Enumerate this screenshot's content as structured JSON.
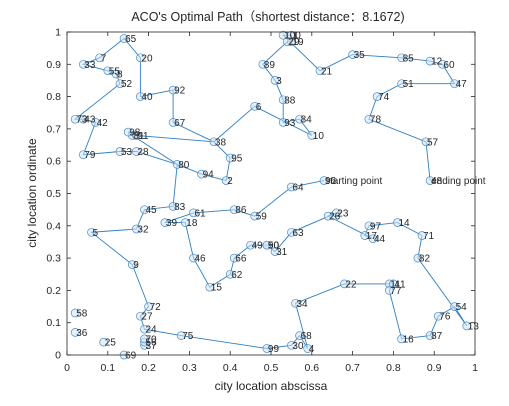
{
  "chart_data": {
    "type": "scatter",
    "title": "ACO's Optimal Path（shortest distance：8.1672)",
    "xlabel": "city location abscissa",
    "ylabel": "city location ordinate",
    "xlim": [
      0,
      1
    ],
    "ylim": [
      0,
      1
    ],
    "xticks": [
      "0",
      "0.1",
      "0.2",
      "0.3",
      "0.4",
      "0.5",
      "0.6",
      "0.7",
      "0.8",
      "0.9",
      "1"
    ],
    "yticks": [
      "0",
      "0.1",
      "0.2",
      "0.3",
      "0.4",
      "0.5",
      "0.6",
      "0.7",
      "0.8",
      "0.9",
      "1"
    ],
    "grid": false,
    "legend": "none",
    "colors": {
      "route": "#2f7fc2",
      "marker_edge": "#4f8fc4",
      "marker_fill": "#cfe3f5"
    },
    "annotations": [
      "starting point",
      "ending point"
    ],
    "points": [
      {
        "label": "1",
        "x": 0.55,
        "y": 0.99
      },
      {
        "label": "2",
        "x": 0.39,
        "y": 0.54
      },
      {
        "label": "3",
        "x": 0.51,
        "y": 0.85
      },
      {
        "label": "4",
        "x": 0.59,
        "y": 0.02
      },
      {
        "label": "5",
        "x": 0.06,
        "y": 0.38
      },
      {
        "label": "6",
        "x": 0.46,
        "y": 0.77
      },
      {
        "label": "7",
        "x": 0.08,
        "y": 0.92
      },
      {
        "label": "8",
        "x": 0.12,
        "y": 0.87
      },
      {
        "label": "9",
        "x": 0.16,
        "y": 0.28
      },
      {
        "label": "10",
        "x": 0.6,
        "y": 0.68
      },
      {
        "label": "11",
        "x": 0.79,
        "y": 0.22
      },
      {
        "label": "12",
        "x": 0.89,
        "y": 0.91
      },
      {
        "label": "13",
        "x": 0.98,
        "y": 0.09
      },
      {
        "label": "14",
        "x": 0.81,
        "y": 0.41
      },
      {
        "label": "15",
        "x": 0.35,
        "y": 0.21
      },
      {
        "label": "16",
        "x": 0.82,
        "y": 0.05
      },
      {
        "label": "17",
        "x": 0.73,
        "y": 0.37
      },
      {
        "label": "18",
        "x": 0.29,
        "y": 0.41
      },
      {
        "label": "19",
        "x": 0.55,
        "y": 0.97
      },
      {
        "label": "20",
        "x": 0.18,
        "y": 0.92
      },
      {
        "label": "21",
        "x": 0.62,
        "y": 0.88
      },
      {
        "label": "22",
        "x": 0.68,
        "y": 0.22
      },
      {
        "label": "23",
        "x": 0.66,
        "y": 0.44
      },
      {
        "label": "24",
        "x": 0.19,
        "y": 0.08
      },
      {
        "label": "25",
        "x": 0.09,
        "y": 0.04
      },
      {
        "label": "26",
        "x": 0.64,
        "y": 0.43
      },
      {
        "label": "27",
        "x": 0.18,
        "y": 0.12
      },
      {
        "label": "28",
        "x": 0.17,
        "y": 0.63
      },
      {
        "label": "29",
        "x": 0.54,
        "y": 0.97
      },
      {
        "label": "30",
        "x": 0.55,
        "y": 0.03
      },
      {
        "label": "31",
        "x": 0.51,
        "y": 0.32
      },
      {
        "label": "32",
        "x": 0.17,
        "y": 0.39
      },
      {
        "label": "33",
        "x": 0.04,
        "y": 0.9
      },
      {
        "label": "34",
        "x": 0.56,
        "y": 0.16
      },
      {
        "label": "35",
        "x": 0.7,
        "y": 0.93
      },
      {
        "label": "36",
        "x": 0.02,
        "y": 0.07
      },
      {
        "label": "37",
        "x": 0.19,
        "y": 0.03
      },
      {
        "label": "38",
        "x": 0.36,
        "y": 0.66
      },
      {
        "label": "39",
        "x": 0.24,
        "y": 0.41
      },
      {
        "label": "40",
        "x": 0.18,
        "y": 0.8
      },
      {
        "label": "41",
        "x": 0.8,
        "y": 0.22
      },
      {
        "label": "42",
        "x": 0.07,
        "y": 0.72
      },
      {
        "label": "43",
        "x": 0.04,
        "y": 0.73
      },
      {
        "label": "44",
        "x": 0.75,
        "y": 0.36
      },
      {
        "label": "45",
        "x": 0.19,
        "y": 0.45
      },
      {
        "label": "46",
        "x": 0.31,
        "y": 0.3
      },
      {
        "label": "47",
        "x": 0.95,
        "y": 0.84
      },
      {
        "label": "48",
        "x": 0.89,
        "y": 0.54
      },
      {
        "label": "49",
        "x": 0.45,
        "y": 0.34
      },
      {
        "label": "50",
        "x": 0.49,
        "y": 0.34
      },
      {
        "label": "51",
        "x": 0.82,
        "y": 0.84
      },
      {
        "label": "52",
        "x": 0.13,
        "y": 0.84
      },
      {
        "label": "53",
        "x": 0.13,
        "y": 0.63
      },
      {
        "label": "54",
        "x": 0.95,
        "y": 0.15
      },
      {
        "label": "55",
        "x": 0.1,
        "y": 0.88
      },
      {
        "label": "56",
        "x": 0.19,
        "y": 0.04
      },
      {
        "label": "57",
        "x": 0.88,
        "y": 0.66
      },
      {
        "label": "58",
        "x": 0.02,
        "y": 0.13
      },
      {
        "label": "59",
        "x": 0.46,
        "y": 0.43
      },
      {
        "label": "60",
        "x": 0.92,
        "y": 0.9
      },
      {
        "label": "61",
        "x": 0.31,
        "y": 0.44
      },
      {
        "label": "62",
        "x": 0.4,
        "y": 0.25
      },
      {
        "label": "63",
        "x": 0.55,
        "y": 0.38
      },
      {
        "label": "64",
        "x": 0.55,
        "y": 0.52
      },
      {
        "label": "65",
        "x": 0.14,
        "y": 0.98
      },
      {
        "label": "66",
        "x": 0.41,
        "y": 0.3
      },
      {
        "label": "67",
        "x": 0.26,
        "y": 0.72
      },
      {
        "label": "68",
        "x": 0.57,
        "y": 0.06
      },
      {
        "label": "69",
        "x": 0.14,
        "y": 0.0
      },
      {
        "label": "70",
        "x": 0.19,
        "y": 0.05
      },
      {
        "label": "71",
        "x": 0.87,
        "y": 0.37
      },
      {
        "label": "72",
        "x": 0.2,
        "y": 0.15
      },
      {
        "label": "73",
        "x": 0.02,
        "y": 0.73
      },
      {
        "label": "74",
        "x": 0.76,
        "y": 0.8
      },
      {
        "label": "75",
        "x": 0.28,
        "y": 0.06
      },
      {
        "label": "76",
        "x": 0.91,
        "y": 0.12
      },
      {
        "label": "77",
        "x": 0.79,
        "y": 0.2
      },
      {
        "label": "78",
        "x": 0.74,
        "y": 0.73
      },
      {
        "label": "79",
        "x": 0.04,
        "y": 0.62
      },
      {
        "label": "80",
        "x": 0.27,
        "y": 0.59
      },
      {
        "label": "81",
        "x": 0.16,
        "y": 0.68
      },
      {
        "label": "82",
        "x": 0.86,
        "y": 0.3
      },
      {
        "label": "83",
        "x": 0.26,
        "y": 0.46
      },
      {
        "label": "84",
        "x": 0.57,
        "y": 0.73
      },
      {
        "label": "85",
        "x": 0.82,
        "y": 0.92
      },
      {
        "label": "86",
        "x": 0.41,
        "y": 0.45
      },
      {
        "label": "87",
        "x": 0.89,
        "y": 0.06
      },
      {
        "label": "88",
        "x": 0.53,
        "y": 0.79
      },
      {
        "label": "89",
        "x": 0.48,
        "y": 0.9
      },
      {
        "label": "90",
        "x": 0.49,
        "y": 0.34
      },
      {
        "label": "91",
        "x": 0.17,
        "y": 0.68
      },
      {
        "label": "92",
        "x": 0.26,
        "y": 0.82
      },
      {
        "label": "93",
        "x": 0.53,
        "y": 0.72
      },
      {
        "label": "94",
        "x": 0.33,
        "y": 0.56
      },
      {
        "label": "95",
        "x": 0.4,
        "y": 0.61
      },
      {
        "label": "96",
        "x": 0.63,
        "y": 0.54
      },
      {
        "label": "97",
        "x": 0.74,
        "y": 0.4
      },
      {
        "label": "98",
        "x": 0.15,
        "y": 0.69
      },
      {
        "label": "99",
        "x": 0.49,
        "y": 0.02
      },
      {
        "label": "100",
        "x": 0.53,
        "y": 0.99
      }
    ],
    "route": [
      48,
      57,
      78,
      74,
      51,
      47,
      60,
      12,
      85,
      35,
      21,
      100,
      1,
      19,
      29,
      89,
      3,
      88,
      93,
      84,
      10,
      6,
      38,
      95,
      2,
      94,
      80,
      28,
      53,
      79,
      42,
      43,
      73,
      52,
      8,
      55,
      33,
      7,
      65,
      20,
      40,
      92,
      67,
      38,
      91,
      98,
      81,
      80,
      83,
      45,
      32,
      5,
      9,
      72,
      27,
      24,
      75,
      99,
      30,
      68,
      4,
      34,
      22,
      11,
      41,
      77,
      16,
      87,
      76,
      54,
      13,
      82,
      71,
      14,
      97,
      17,
      44,
      26,
      23,
      63,
      31,
      90,
      50,
      49,
      66,
      62,
      15,
      46,
      18,
      39,
      61,
      86,
      59,
      64,
      96
    ]
  }
}
